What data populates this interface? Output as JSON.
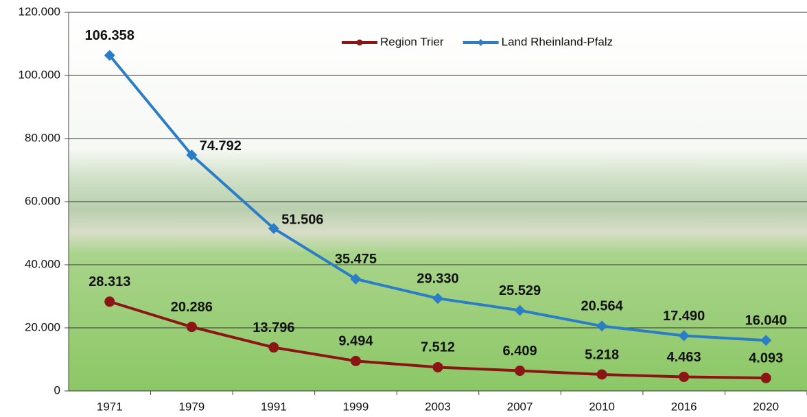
{
  "chart_data": {
    "type": "line",
    "categories": [
      "1971",
      "1979",
      "1991",
      "1999",
      "2003",
      "2007",
      "2010",
      "2016",
      "2020"
    ],
    "series": [
      {
        "name": "Region Trier",
        "color": "#8b1515",
        "marker": "circle",
        "values": [
          28313,
          20286,
          13796,
          9494,
          7512,
          6409,
          5218,
          4463,
          4093
        ],
        "value_labels": [
          "28.313",
          "20.286",
          "13.796",
          "9.494",
          "7.512",
          "6.409",
          "5.218",
          "4.463",
          "4.093"
        ]
      },
      {
        "name": "Land Rheinland-Pfalz",
        "color": "#2a7dc6",
        "marker": "diamond",
        "values": [
          106358,
          74792,
          51506,
          35475,
          29330,
          25529,
          20564,
          17490,
          16040
        ],
        "value_labels": [
          "106.358",
          "74.792",
          "51.506",
          "35.475",
          "29.330",
          "25.529",
          "20.564",
          "17.490",
          "16.040"
        ]
      }
    ],
    "ylim": [
      0,
      120000
    ],
    "yticks": [
      0,
      {
        "value": 20000,
        "label": "20.000"
      },
      {
        "value": 40000,
        "label": "40.000"
      },
      {
        "value": 60000,
        "label": "60.000"
      },
      {
        "value": 80000,
        "label": "80.000"
      },
      {
        "value": 100000,
        "label": "100.000"
      },
      {
        "value": 120000,
        "label": "120.000"
      }
    ],
    "grid": true,
    "legend": "top"
  }
}
